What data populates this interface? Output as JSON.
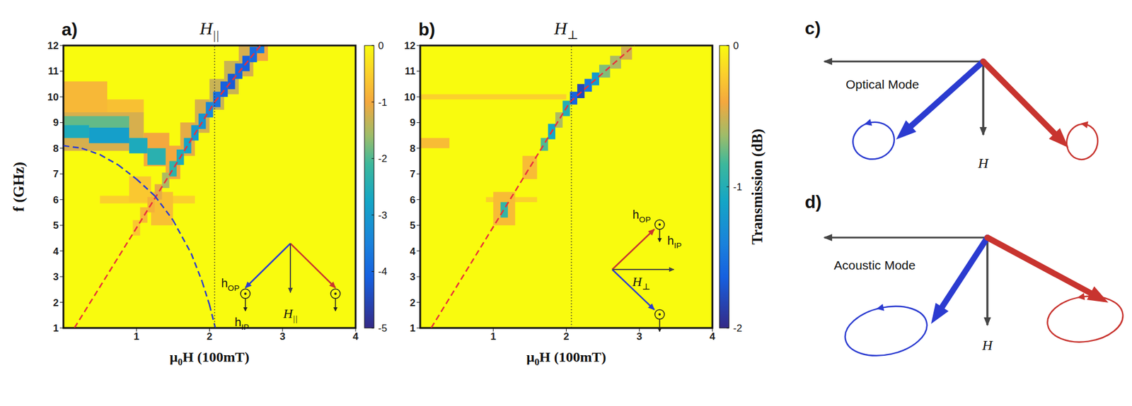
{
  "chart_data": [
    {
      "panel": "a)",
      "type": "heatmap",
      "title": "H||",
      "x_label": "μ0H (100mT)",
      "y_label": "f (GHz)",
      "xlim": [
        0,
        4
      ],
      "ylim": [
        1,
        12
      ],
      "xticks": [
        1,
        2,
        3,
        4
      ],
      "yticks": [
        1,
        2,
        3,
        4,
        5,
        6,
        7,
        8,
        9,
        10,
        11,
        12
      ],
      "colorbar": {
        "range": [
          -5,
          0
        ],
        "ticks": [
          0,
          -1,
          -2,
          -3,
          -4,
          -5
        ]
      },
      "cells": [
        [
          0,
          0.6,
          9.4,
          10.6,
          -0.8
        ],
        [
          0,
          1.1,
          7.9,
          9.4,
          -1.2
        ],
        [
          0.6,
          1.1,
          9.4,
          9.9,
          -0.7
        ],
        [
          1.1,
          1.45,
          7.3,
          8.6,
          -1.0
        ],
        [
          0,
          0.9,
          8.8,
          9.25,
          -1.9
        ],
        [
          0,
          0.35,
          8.4,
          8.9,
          -2.6
        ],
        [
          0.35,
          0.9,
          8.2,
          8.8,
          -2.9
        ],
        [
          0.9,
          1.15,
          7.8,
          8.4,
          -2.6
        ],
        [
          1.15,
          1.45,
          7.35,
          8.0,
          -2.4
        ],
        [
          0.5,
          1.8,
          5.85,
          6.15,
          -0.5
        ],
        [
          0.9,
          1.2,
          5.9,
          6.9,
          -0.6
        ],
        [
          1.2,
          1.5,
          5.0,
          6.3,
          -0.7
        ],
        [
          1.4,
          1.6,
          6.8,
          8.1,
          -1.0
        ],
        [
          1.6,
          1.8,
          7.7,
          9.0,
          -1.1
        ],
        [
          1.8,
          2.0,
          8.6,
          9.9,
          -1.2
        ],
        [
          2.0,
          2.2,
          9.5,
          10.7,
          -1.3
        ],
        [
          2.2,
          2.4,
          10.1,
          11.4,
          -1.3
        ],
        [
          2.4,
          2.6,
          10.8,
          12,
          -1.2
        ],
        [
          2.6,
          2.8,
          11.4,
          12,
          -1.0
        ],
        [
          0.95,
          1.05,
          4.6,
          5.2,
          -0.6
        ],
        [
          1.05,
          1.15,
          5.1,
          5.7,
          -0.8
        ],
        [
          1.15,
          1.25,
          5.5,
          6.1,
          -0.9
        ],
        [
          1.25,
          1.35,
          6.0,
          6.6,
          -1.1
        ],
        [
          1.35,
          1.45,
          6.45,
          7.05,
          -1.5
        ],
        [
          1.45,
          1.55,
          6.9,
          7.5,
          -2.3
        ],
        [
          1.55,
          1.65,
          7.35,
          7.95,
          -2.6
        ],
        [
          1.65,
          1.75,
          7.8,
          8.4,
          -2.8
        ],
        [
          1.75,
          1.85,
          8.3,
          8.9,
          -3.0
        ],
        [
          1.85,
          1.95,
          8.75,
          9.35,
          -3.1
        ],
        [
          1.95,
          2.05,
          9.2,
          9.8,
          -3.4
        ],
        [
          2.05,
          2.15,
          9.6,
          10.2,
          -3.8
        ],
        [
          2.15,
          2.25,
          10.0,
          10.6,
          -4.1
        ],
        [
          2.25,
          2.35,
          10.3,
          10.9,
          -4.2
        ],
        [
          2.35,
          2.45,
          10.7,
          11.3,
          -4.0
        ],
        [
          2.45,
          2.55,
          11.0,
          11.6,
          -4.1
        ],
        [
          2.55,
          2.65,
          11.35,
          11.95,
          -3.9
        ],
        [
          2.65,
          2.75,
          11.7,
          12.0,
          -3.6
        ]
      ],
      "series": [
        {
          "color": "#e8313a",
          "line_style": "dashed",
          "x": [
            0.15,
            2.07,
            2.7
          ],
          "y": [
            1,
            9.8,
            12
          ]
        },
        {
          "color": "#2a3bd1",
          "line_style": "dashed",
          "x": [
            0,
            0.25,
            0.5,
            0.75,
            1.0,
            1.25,
            1.5,
            1.75,
            1.9,
            2.0,
            2.08
          ],
          "y": [
            8.1,
            8.0,
            7.75,
            7.35,
            6.8,
            6.15,
            5.2,
            3.9,
            2.8,
            1.9,
            1.0
          ]
        }
      ],
      "reference_lines": [
        {
          "x": 2.07,
          "line_style": "dotted"
        }
      ],
      "inset_labels": [
        "hOP",
        "hIP",
        "H||"
      ]
    },
    {
      "panel": "b)",
      "type": "heatmap",
      "title": "H⊥",
      "x_label": "μ0H (100mT)",
      "xlim": [
        0,
        4
      ],
      "ylim": [
        1,
        12
      ],
      "xticks": [
        1,
        2,
        3,
        4
      ],
      "yticks": [
        1,
        2,
        3,
        4,
        5,
        6,
        7,
        8,
        9,
        10,
        11,
        12
      ],
      "colorbar": {
        "range": [
          -2,
          0
        ],
        "ticks": [
          0,
          -1,
          -2
        ],
        "label": "Transmission (dB)"
      },
      "cells": [
        [
          0,
          2.0,
          9.9,
          10.1,
          -0.2
        ],
        [
          0,
          0.4,
          8.0,
          8.4,
          -0.3
        ],
        [
          0.9,
          1.6,
          5.9,
          6.1,
          -0.2
        ],
        [
          1.0,
          1.3,
          5.0,
          6.3,
          -0.3
        ],
        [
          1.1,
          1.2,
          5.3,
          5.9,
          -0.9
        ],
        [
          1.4,
          1.6,
          6.8,
          7.7,
          -0.3
        ],
        [
          1.65,
          1.75,
          7.9,
          8.4,
          -0.8
        ],
        [
          1.75,
          1.85,
          8.35,
          8.95,
          -1.1
        ],
        [
          1.85,
          1.95,
          8.8,
          9.4,
          -0.6
        ],
        [
          1.95,
          2.05,
          9.25,
          9.85,
          -1.0
        ],
        [
          2.05,
          2.15,
          9.7,
          10.2,
          -1.6
        ],
        [
          2.15,
          2.25,
          9.95,
          10.5,
          -1.8
        ],
        [
          2.25,
          2.35,
          10.2,
          10.7,
          -1.5
        ],
        [
          2.35,
          2.45,
          10.45,
          10.95,
          -1.2
        ],
        [
          2.45,
          2.6,
          10.75,
          11.25,
          -0.7
        ],
        [
          2.6,
          2.75,
          11.1,
          11.6,
          -0.6
        ],
        [
          2.75,
          2.9,
          11.45,
          11.95,
          -0.5
        ]
      ],
      "series": [
        {
          "color": "#e8313a",
          "line_style": "dashed",
          "x": [
            0.15,
            2.05,
            2.93
          ],
          "y": [
            1,
            9.8,
            12
          ]
        }
      ],
      "reference_lines": [
        {
          "x": 2.07,
          "line_style": "dotted"
        }
      ],
      "inset_labels": [
        "hOP",
        "hIP",
        "H⊥"
      ]
    }
  ],
  "diagrams": [
    {
      "panel": "c)",
      "label": "Optical Mode",
      "field_label": "H"
    },
    {
      "panel": "d)",
      "label": "Acoustic Mode",
      "field_label": "H"
    }
  ]
}
